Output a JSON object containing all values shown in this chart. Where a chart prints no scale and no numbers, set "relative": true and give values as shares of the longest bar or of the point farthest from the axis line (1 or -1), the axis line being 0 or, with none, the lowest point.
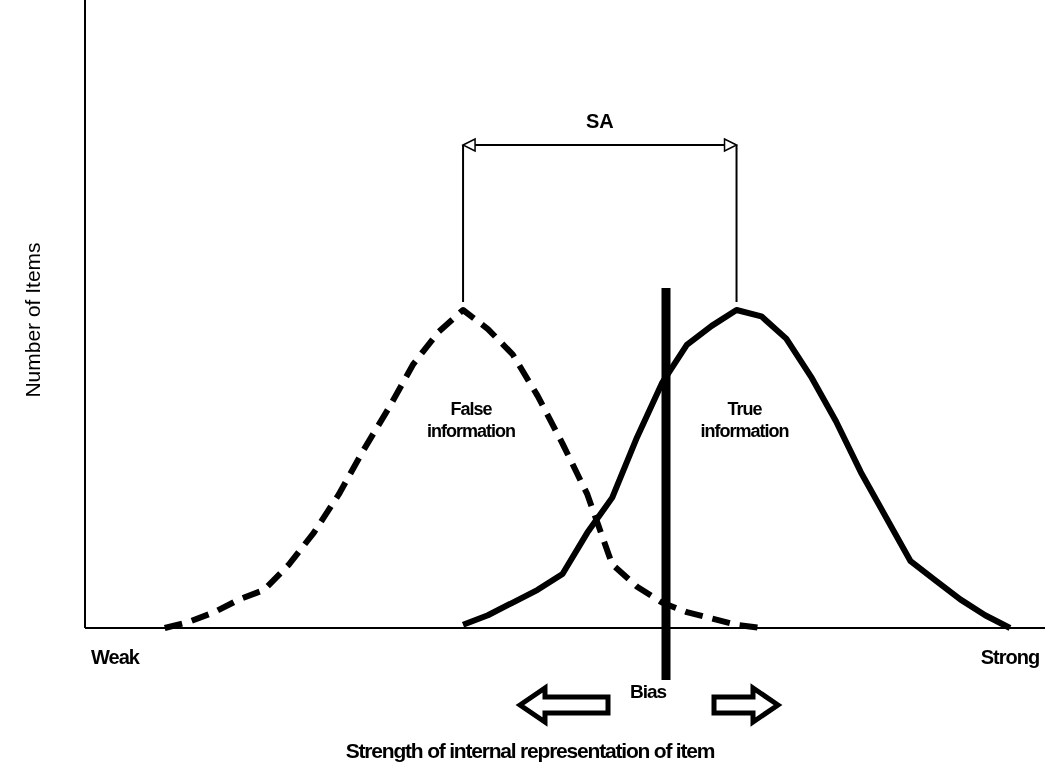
{
  "chart_data": {
    "type": "line",
    "relative": true,
    "xlabel": "Strength of internal representation of item",
    "ylabel": "Number of Items",
    "categories": [
      "Weak",
      null,
      null,
      null,
      null,
      null,
      null,
      null,
      null,
      null,
      null,
      null,
      null,
      null,
      null,
      null,
      null,
      null,
      null,
      null,
      null,
      null,
      null,
      null,
      null,
      null,
      null,
      null,
      null,
      null,
      null,
      null,
      null,
      null,
      null,
      null,
      "Strong"
    ],
    "annotations": [
      "SA",
      "Bias"
    ],
    "series": [
      {
        "name": "False information",
        "color": "#000000",
        "line_style": "dashed",
        "values": [
          null,
          null,
          0,
          0.02,
          0.05,
          0.09,
          0.12,
          0.2,
          0.3,
          0.42,
          0.56,
          0.69,
          0.83,
          0.93,
          1,
          0.94,
          0.86,
          0.73,
          0.58,
          0.42,
          0.2,
          0.13,
          0.08,
          0.05,
          0.03,
          0.01,
          0,
          null,
          null,
          null,
          null,
          null,
          null,
          null,
          null,
          null,
          null
        ]
      },
      {
        "name": "True information",
        "color": "#000000",
        "line_style": "solid",
        "values": [
          null,
          null,
          null,
          null,
          null,
          null,
          null,
          null,
          null,
          null,
          null,
          null,
          null,
          null,
          0.01,
          0.04,
          0.08,
          0.12,
          0.17,
          0.3,
          0.41,
          0.6,
          0.77,
          0.89,
          0.95,
          1,
          0.98,
          0.91,
          0.79,
          0.65,
          0.49,
          0.35,
          0.21,
          0.15,
          0.09,
          0.04,
          0
        ]
      }
    ]
  }
}
